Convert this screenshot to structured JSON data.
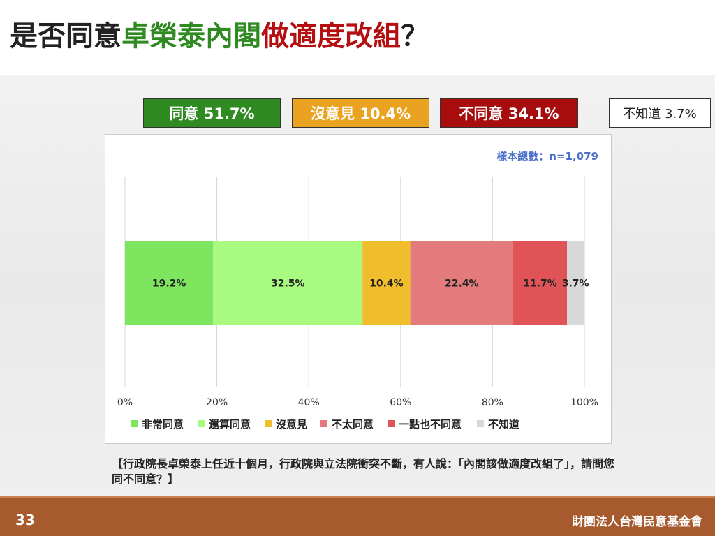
{
  "title": {
    "part1": "是否同意",
    "part2": "卓榮泰內閣",
    "part3": "做適度改組",
    "part4": "？"
  },
  "summary": {
    "agree": "同意 51.7%",
    "no_opinion": "沒意見 10.4%",
    "disagree": "不同意 34.1%",
    "dont_know": "不知道 3.7%"
  },
  "sample_note": "樣本總數：n=1,079",
  "question": "【行政院長卓榮泰上任近十個月，行政院與立法院衝突不斷，有人說：「內閣該做適度改組了」，請問您同不同意？】",
  "footer": {
    "page_number": "33",
    "org_name": "財團法人台灣民意基金會"
  },
  "colors": {
    "very_agree": "#7ee55f",
    "somewhat_agree": "#a8fa80",
    "no_opinion": "#f0bd2d",
    "not_really_agree": "#e37b7c",
    "strongly_disagree": "#e05458",
    "dont_know": "#d8d8d8"
  },
  "chart_data": {
    "type": "bar",
    "orientation": "horizontal-stacked-100",
    "title": "",
    "xlabel": "",
    "ylabel": "",
    "xlim": [
      0,
      100
    ],
    "x_ticks": [
      "0%",
      "20%",
      "40%",
      "60%",
      "80%",
      "100%"
    ],
    "x_tick_values": [
      0,
      20,
      40,
      60,
      80,
      100
    ],
    "grid": true,
    "legend_position": "bottom",
    "series": [
      {
        "name": "非常同意",
        "value": 19.2,
        "label": "19.2%",
        "color": "#7ee55f"
      },
      {
        "name": "還算同意",
        "value": 32.5,
        "label": "32.5%",
        "color": "#a8fa80"
      },
      {
        "name": "沒意見",
        "value": 10.4,
        "label": "10.4%",
        "color": "#f0bd2d"
      },
      {
        "name": "不太同意",
        "value": 22.4,
        "label": "22.4%",
        "color": "#e37b7c"
      },
      {
        "name": "一點也不同意",
        "value": 11.7,
        "label": "11.7%",
        "color": "#e05458"
      },
      {
        "name": "不知道",
        "value": 3.7,
        "label": "3.7%",
        "color": "#d8d8d8"
      }
    ]
  }
}
